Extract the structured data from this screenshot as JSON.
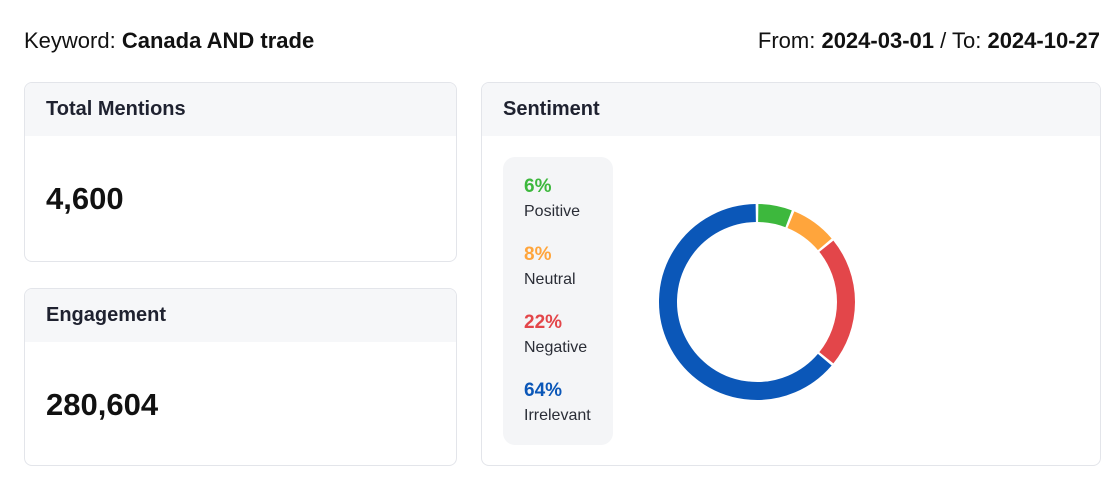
{
  "header": {
    "keyword_label": "Keyword:",
    "keyword_value": "Canada AND trade",
    "from_label": "From:",
    "from_value": "2024-03-01",
    "separator": "/",
    "to_label": "To:",
    "to_value": "2024-10-27"
  },
  "mentions": {
    "title": "Total Mentions",
    "value": "4,600"
  },
  "engagement": {
    "title": "Engagement",
    "value": "280,604"
  },
  "sentiment": {
    "title": "Sentiment",
    "items": [
      {
        "pct": "6%",
        "label": "Positive",
        "color": "#3db83d"
      },
      {
        "pct": "8%",
        "label": "Neutral",
        "color": "#ffa53c"
      },
      {
        "pct": "22%",
        "label": "Negative",
        "color": "#e3464a"
      },
      {
        "pct": "64%",
        "label": "Irrelevant",
        "color": "#0b57b8"
      }
    ]
  },
  "chart_data": {
    "type": "pie",
    "categories": [
      "Positive",
      "Neutral",
      "Negative",
      "Irrelevant"
    ],
    "values": [
      6,
      8,
      22,
      64
    ],
    "colors": [
      "#3db83d",
      "#ffa53c",
      "#e3464a",
      "#0b57b8"
    ],
    "title": "Sentiment"
  }
}
